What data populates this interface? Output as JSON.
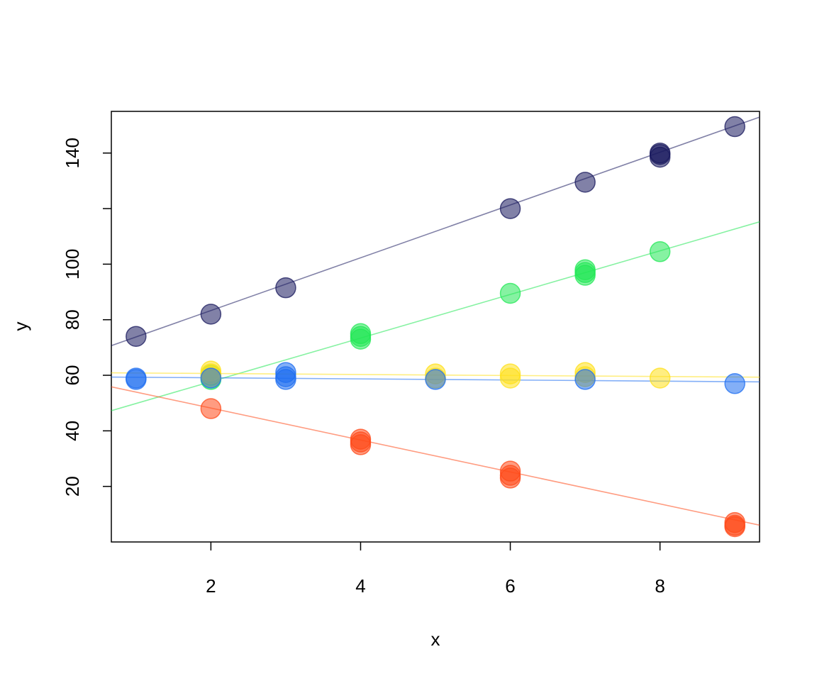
{
  "chart_data": {
    "type": "scatter",
    "title": "",
    "xlabel": "x",
    "ylabel": "y",
    "xlim": [
      0.67,
      9.33
    ],
    "ylim": [
      0,
      155
    ],
    "x_ticks": [
      2,
      4,
      6,
      8
    ],
    "y_ticks": [
      20,
      40,
      60,
      80,
      100,
      120,
      140
    ],
    "y_tick_labels": [
      "20",
      "40",
      "60",
      "80",
      "100",
      "",
      "140"
    ],
    "grid": false,
    "legend": false,
    "series": [
      {
        "color": "#1a1a5e",
        "points": [
          [
            1,
            74
          ],
          [
            2,
            82
          ],
          [
            3,
            91.5
          ],
          [
            6,
            120
          ],
          [
            7,
            129.5
          ],
          [
            8,
            138.5
          ],
          [
            8,
            140
          ],
          [
            8,
            139.5
          ],
          [
            9,
            149.5
          ]
        ],
        "fit": {
          "intercept": 64.3,
          "slope": 9.5
        }
      },
      {
        "color": "#22e855",
        "points": [
          [
            2,
            58.5
          ],
          [
            2,
            60
          ],
          [
            4,
            75
          ],
          [
            4,
            73
          ],
          [
            4,
            74
          ],
          [
            6,
            89.5
          ],
          [
            7,
            96
          ],
          [
            7,
            98
          ],
          [
            7,
            97
          ],
          [
            8,
            104.5
          ]
        ],
        "fit": {
          "intercept": 42,
          "slope": 7.85
        }
      },
      {
        "color": "#ffe01a",
        "points": [
          [
            2,
            60.5
          ],
          [
            2,
            61.5
          ],
          [
            2,
            59.5
          ],
          [
            5,
            60.5
          ],
          [
            5,
            59
          ],
          [
            6,
            60.5
          ],
          [
            6,
            59
          ],
          [
            7,
            61
          ],
          [
            7,
            59.5
          ],
          [
            8,
            59
          ]
        ],
        "fit": {
          "intercept": 61,
          "slope": -0.18
        }
      },
      {
        "color": "#1e6ef0",
        "points": [
          [
            1,
            59
          ],
          [
            1,
            58.5
          ],
          [
            2,
            59
          ],
          [
            3,
            61
          ],
          [
            3,
            59.5
          ],
          [
            3,
            58.5
          ],
          [
            5,
            58.5
          ],
          [
            7,
            58.5
          ],
          [
            9,
            57
          ]
        ],
        "fit": {
          "intercept": 59.5,
          "slope": -0.2
        }
      },
      {
        "color": "#ff4a1a",
        "points": [
          [
            2,
            48
          ],
          [
            4,
            37
          ],
          [
            4,
            35
          ],
          [
            4,
            36
          ],
          [
            6,
            25.5
          ],
          [
            6,
            23
          ],
          [
            6,
            24
          ],
          [
            9,
            7
          ],
          [
            9,
            6
          ],
          [
            9,
            5.5
          ]
        ],
        "fit": {
          "intercept": 59.7,
          "slope": -5.75
        }
      }
    ]
  }
}
